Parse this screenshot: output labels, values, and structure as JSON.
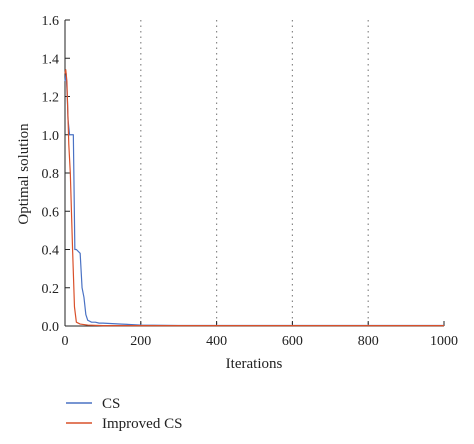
{
  "chart_data": {
    "type": "line",
    "xlabel": "Iterations",
    "ylabel": "Optimal solution",
    "xlim": [
      0,
      1000
    ],
    "ylim": [
      0,
      1.6
    ],
    "xticks": [
      0,
      200,
      400,
      600,
      800,
      1000
    ],
    "yticks": [
      0.0,
      0.2,
      0.4,
      0.6,
      0.8,
      1.0,
      1.2,
      1.4,
      1.6
    ],
    "grid": "dotted vertical",
    "legend_position": "bottom-left",
    "series": [
      {
        "name": "CS",
        "color": "#4a72c4",
        "x": [
          0,
          3,
          6,
          8,
          12,
          18,
          22,
          26,
          30,
          40,
          45,
          50,
          55,
          60,
          70,
          80,
          90,
          100,
          150,
          200,
          300,
          1000
        ],
        "y": [
          1.28,
          1.32,
          1.2,
          1.08,
          1.0,
          1.0,
          1.0,
          0.4,
          0.4,
          0.38,
          0.2,
          0.15,
          0.06,
          0.03,
          0.02,
          0.02,
          0.015,
          0.015,
          0.01,
          0.005,
          0.003,
          0.003
        ]
      },
      {
        "name": "Improved CS",
        "color": "#d9502a",
        "x": [
          0,
          2,
          5,
          10,
          14,
          20,
          25,
          30,
          40,
          60,
          100,
          1000
        ],
        "y": [
          1.32,
          1.34,
          1.28,
          0.95,
          0.8,
          0.4,
          0.1,
          0.02,
          0.01,
          0.005,
          0.002,
          0.002
        ]
      }
    ]
  }
}
